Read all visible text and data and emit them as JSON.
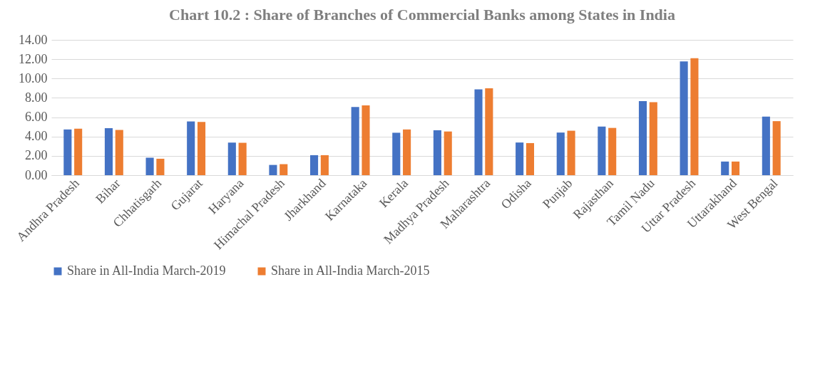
{
  "chart_data": {
    "type": "bar",
    "title": "Chart  10.2  :  Share of Branches of Commercial Banks among States in India",
    "categories": [
      "Andhra Pradesh",
      "Bihar",
      "Chhatisgarh",
      "Gujarat",
      "Haryana",
      "Himachal Pradesh",
      "Jharkhand",
      "Karnataka",
      "Kerala",
      "Madhya Pradesh",
      "Maharashtra",
      "Odisha",
      "Punjab",
      "Rajasthan",
      "Tamil Nadu",
      "Uttar Pradesh",
      "Uttarakhand",
      "West Bengal"
    ],
    "series": [
      {
        "name": "Share in All-India March-2019",
        "color": "#4472c4",
        "values": [
          4.73,
          4.87,
          1.81,
          5.56,
          3.38,
          1.06,
          2.07,
          7.05,
          4.39,
          4.65,
          8.88,
          3.38,
          4.41,
          5.03,
          7.66,
          11.78,
          1.41,
          6.06
        ]
      },
      {
        "name": "Share in All-India March-2015",
        "color": "#ed7d31",
        "values": [
          4.81,
          4.68,
          1.7,
          5.51,
          3.35,
          1.14,
          2.07,
          7.23,
          4.73,
          4.52,
          8.99,
          3.32,
          4.6,
          4.89,
          7.55,
          12.1,
          1.41,
          5.59
        ]
      }
    ],
    "ylim": [
      0,
      14
    ],
    "yticks": [
      {
        "value": 0,
        "label": "0.00"
      },
      {
        "value": 2,
        "label": "2.00"
      },
      {
        "value": 4,
        "label": "4.00"
      },
      {
        "value": 6,
        "label": "6.00"
      },
      {
        "value": 8,
        "label": "8.00"
      },
      {
        "value": 10,
        "label": "10.00"
      },
      {
        "value": 12,
        "label": "12.00"
      },
      {
        "value": 14,
        "label": "14.00"
      }
    ],
    "grid": "y",
    "legend": "bottom"
  }
}
